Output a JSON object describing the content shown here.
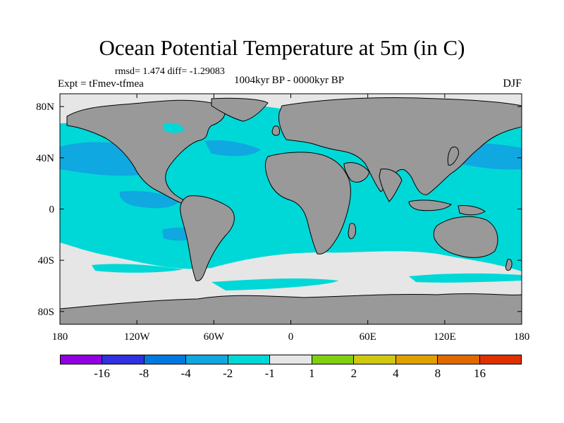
{
  "title": "Ocean Potential Temperature at 5m (in C)",
  "stats": "rmsd= 1.474 diff= -1.29083",
  "experiment": "Expt = tFmev-tfmea",
  "period": "1004kyr BP - 0000kyr BP",
  "season": "DJF",
  "axes": {
    "lon_ticks": [
      {
        "lon": -180,
        "label": "180"
      },
      {
        "lon": -120,
        "label": "120W"
      },
      {
        "lon": -60,
        "label": "60W"
      },
      {
        "lon": 0,
        "label": "0"
      },
      {
        "lon": 60,
        "label": "60E"
      },
      {
        "lon": 120,
        "label": "120E"
      },
      {
        "lon": 180,
        "label": "180"
      }
    ],
    "lat_ticks": [
      {
        "lat": 80,
        "label": "80N"
      },
      {
        "lat": 40,
        "label": "40N"
      },
      {
        "lat": 0,
        "label": "0"
      },
      {
        "lat": -40,
        "label": "40S"
      },
      {
        "lat": -80,
        "label": "80S"
      }
    ],
    "lon_range": [
      -180,
      180
    ],
    "lat_range": [
      -90,
      90
    ]
  },
  "colors": {
    "land": "#999999",
    "near_zero": "#e6e6e6",
    "cool_light": "#00d8d8",
    "cool_mid": "#10a8e0"
  },
  "colorbar": {
    "colors": [
      "#9000e0",
      "#3030e0",
      "#0078e0",
      "#10a8e0",
      "#00d8d8",
      "#e6e6e6",
      "#80d010",
      "#d0c810",
      "#e0a000",
      "#e06800",
      "#e03000"
    ],
    "labels": [
      {
        "pos": 1,
        "label": "-16"
      },
      {
        "pos": 2,
        "label": "-8"
      },
      {
        "pos": 3,
        "label": "-4"
      },
      {
        "pos": 4,
        "label": "-2"
      },
      {
        "pos": 5,
        "label": "-1"
      },
      {
        "pos": 6,
        "label": "1"
      },
      {
        "pos": 7,
        "label": "2"
      },
      {
        "pos": 8,
        "label": "4"
      },
      {
        "pos": 9,
        "label": "8"
      },
      {
        "pos": 10,
        "label": "16"
      }
    ]
  }
}
